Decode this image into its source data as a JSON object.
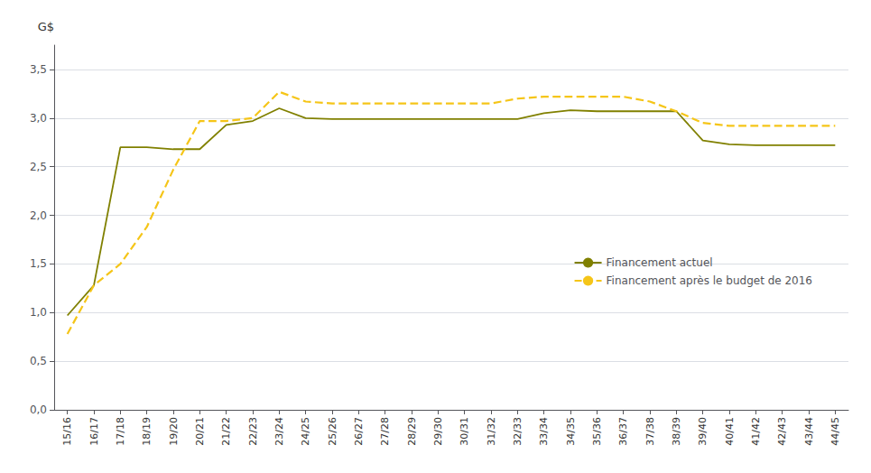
{
  "chart_data": {
    "type": "line",
    "ylabel": "G$",
    "categories": [
      "15/16",
      "16/17",
      "17/18",
      "18/19",
      "19/20",
      "20/21",
      "21/22",
      "22/23",
      "23/24",
      "24/25",
      "25/26",
      "26/27",
      "27/28",
      "28/29",
      "29/30",
      "30/31",
      "31/32",
      "32/33",
      "33/34",
      "34/35",
      "35/36",
      "36/37",
      "37/38",
      "38/39",
      "39/40",
      "40/41",
      "41/42",
      "42/43",
      "43/44",
      "44/45"
    ],
    "series": [
      {
        "name": "Financement actuel",
        "color": "#808000",
        "line_style": "solid",
        "values": [
          0.97,
          1.28,
          2.7,
          2.7,
          2.68,
          2.68,
          2.93,
          2.97,
          3.1,
          3.0,
          2.99,
          2.99,
          2.99,
          2.99,
          2.99,
          2.99,
          2.99,
          2.99,
          3.05,
          3.08,
          3.07,
          3.07,
          3.07,
          3.07,
          2.77,
          2.73,
          2.72,
          2.72,
          2.72,
          2.72
        ]
      },
      {
        "name": "Financement après le budget de 2016",
        "color": "#F5C518",
        "line_style": "dashed",
        "values": [
          0.78,
          1.28,
          1.5,
          1.88,
          2.47,
          2.97,
          2.97,
          3.0,
          3.27,
          3.17,
          3.15,
          3.15,
          3.15,
          3.15,
          3.15,
          3.15,
          3.15,
          3.2,
          3.22,
          3.22,
          3.22,
          3.22,
          3.17,
          3.07,
          2.95,
          2.92,
          2.92,
          2.92,
          2.92,
          2.92
        ]
      }
    ],
    "ylim": [
      0.0,
      3.75
    ],
    "yticks": [
      {
        "value": 0.0,
        "label": "0,0"
      },
      {
        "value": 0.5,
        "label": "0,5"
      },
      {
        "value": 1.0,
        "label": "1,0"
      },
      {
        "value": 1.5,
        "label": "1,5"
      },
      {
        "value": 2.0,
        "label": "2,0"
      },
      {
        "value": 2.5,
        "label": "2,5"
      },
      {
        "value": 3.0,
        "label": "3,0"
      },
      {
        "value": 3.5,
        "label": "3,5"
      }
    ],
    "grid": true,
    "legend": "right"
  }
}
